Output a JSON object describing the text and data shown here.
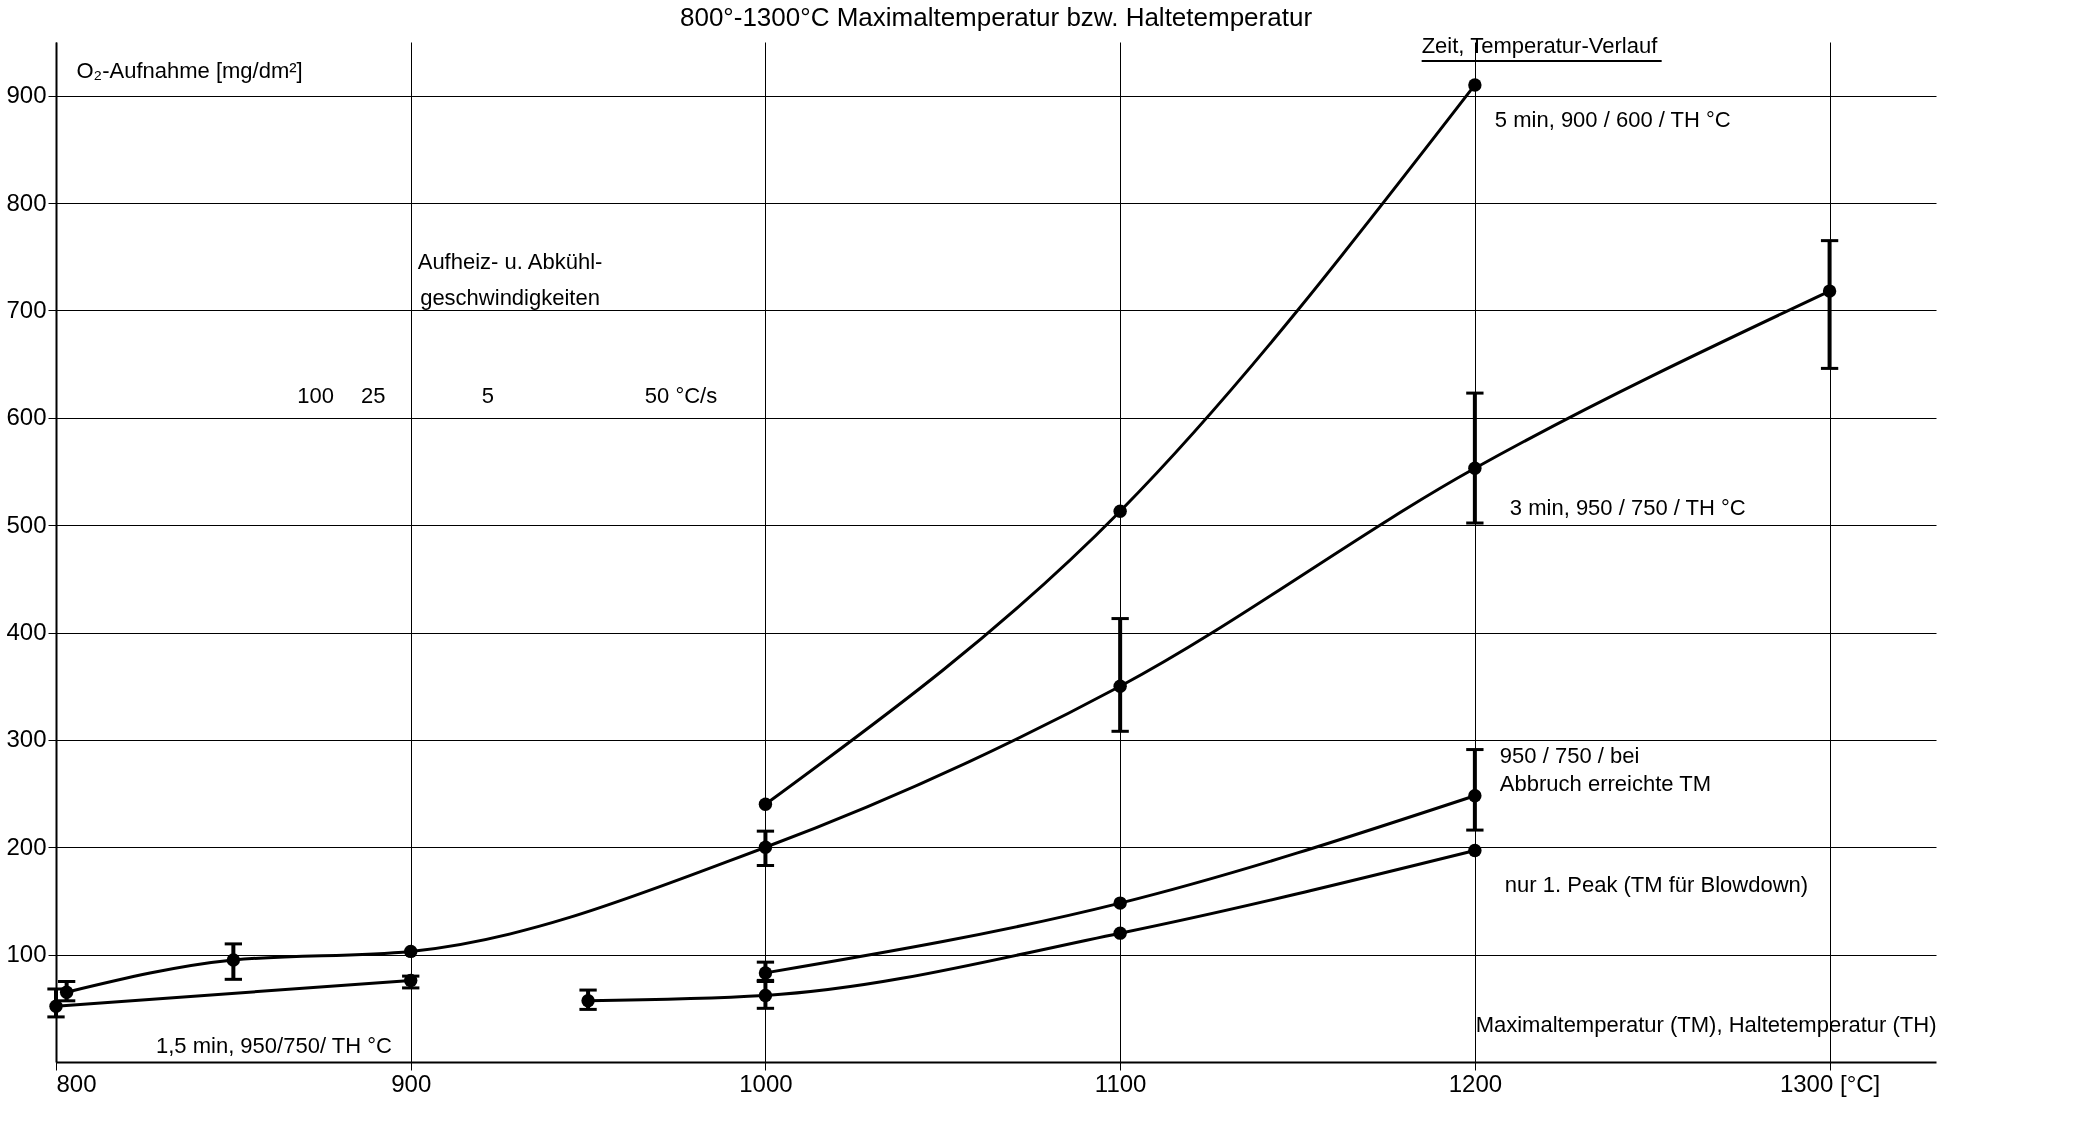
{
  "chart_data": {
    "type": "line",
    "title": "800°-1300°C Maximaltemperatur bzw. Haltetemperatur",
    "xlabel": "Maximaltemperatur (TM), Haltetemperatur (TH)",
    "ylabel": "O₂-Aufnahme [mg/dm²]",
    "legend_title": "Zeit, Temperatur-Verlauf",
    "annotations": [
      "Aufheiz- u. Abkühl-",
      "geschwindigkeiten",
      "100",
      "25",
      "5",
      "50  °C/s"
    ],
    "xlim": [
      800,
      1330
    ],
    "ylim": [
      0,
      950
    ],
    "xticks": [
      800,
      900,
      1000,
      1100,
      1200,
      {
        "value": 1300,
        "label": "1300  [°C]"
      }
    ],
    "yticks": [
      100,
      200,
      300,
      400,
      500,
      600,
      700,
      800,
      900
    ],
    "grid": true,
    "legend": false,
    "marker": "circle",
    "line_style": "solid",
    "series": [
      {
        "name": "5 min, 900 / 600 / TH  °C",
        "color": "#000000",
        "x": [
          1000,
          1100,
          1200
        ],
        "values": [
          240,
          513,
          910
        ],
        "errors": [
          null,
          null,
          null
        ]
      },
      {
        "name": "3 min, 950 / 750 / TH  °C",
        "color": "#000000",
        "x": [
          803,
          850,
          900,
          1000,
          1100,
          1200,
          1300
        ],
        "values": [
          65,
          95,
          103,
          200,
          350,
          553,
          718
        ],
        "errors": [
          [
            57,
            75
          ],
          [
            77,
            110
          ],
          null,
          [
            183,
            215
          ],
          [
            308,
            413
          ],
          [
            502,
            623
          ],
          [
            646,
            765
          ]
        ]
      },
      {
        "name": "1,5 min, 950/750/ TH °C",
        "color": "#000000",
        "x": [
          800,
          900
        ],
        "values": [
          52,
          76
        ],
        "errors": [
          [
            42,
            68
          ],
          [
            69,
            80
          ]
        ]
      },
      {
        "name": "950 / 750 / bei Abbruch erreichte TM",
        "color": "#000000",
        "x": [
          1000,
          1100,
          1200
        ],
        "values": [
          83,
          148,
          248
        ],
        "errors": [
          [
            76,
            93
          ],
          null,
          [
            216,
            291
          ]
        ]
      },
      {
        "name": "nur 1. Peak (TM für Blowdown)",
        "color": "#000000",
        "x": [
          950,
          1000,
          1100,
          1200
        ],
        "values": [
          57,
          62,
          120,
          197
        ],
        "errors": [
          [
            49,
            67
          ],
          [
            50,
            75
          ],
          null,
          null
        ]
      }
    ]
  }
}
